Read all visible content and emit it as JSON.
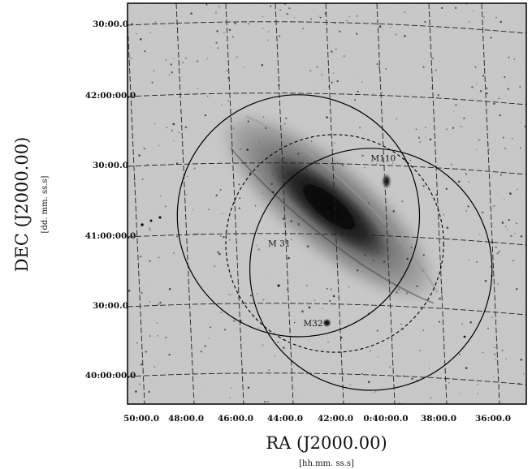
{
  "chart_data": {
    "type": "sky-image",
    "xlabel": "RA (J2000.00)",
    "xlabel_sub": "[hh.mm. ss.s]",
    "ylabel": "DEC (J2000.00)",
    "ylabel_sub": "[dd. mm. ss.s]",
    "x_ticks": [
      "50:00.0",
      "48:00.0",
      "46:00.0",
      "44:00.0",
      "42:00.0",
      "0:40:00.0",
      "38:00.0",
      "36:00.0"
    ],
    "y_ticks": [
      "30:00.0",
      "42:00:00.0",
      "30:00.0",
      "41:00:00.0",
      "30:00.0",
      "40:00:00.0"
    ],
    "ra_range_minutes": [
      50.4,
      35.0
    ],
    "dec_range_degrees": [
      42.72,
      40.4
    ],
    "objects": [
      {
        "name": "M110",
        "ra_min": 40.4,
        "dec_deg": 41.69
      },
      {
        "name": "M 31",
        "ra_min": 42.7,
        "dec_deg": 41.27
      },
      {
        "name": "M32",
        "ra_min": 42.7,
        "dec_deg": 40.87
      }
    ],
    "fields": [
      {
        "style": "solid",
        "ra_min": 43.8,
        "dec_deg": 41.49,
        "radius_deg": 0.7
      },
      {
        "style": "solid",
        "ra_min": 41.0,
        "dec_deg": 41.18,
        "radius_deg": 0.7
      },
      {
        "style": "dashed",
        "ra_min": 42.4,
        "dec_deg": 41.33,
        "radius_deg": 0.63
      }
    ],
    "colormap": "inverted grayscale",
    "grid": true
  }
}
